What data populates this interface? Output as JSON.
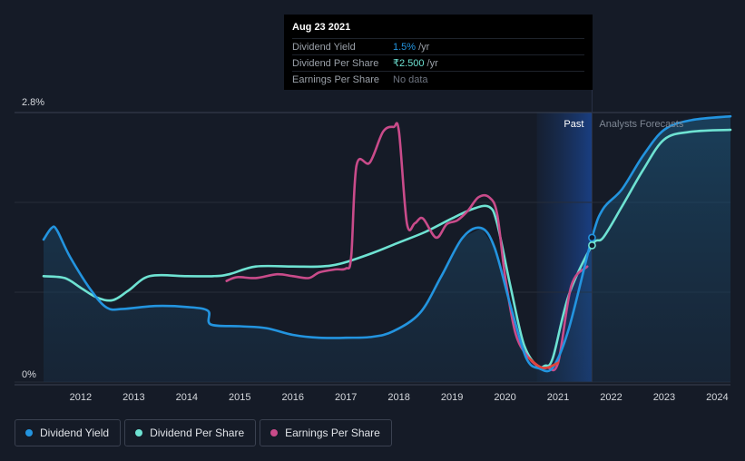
{
  "tooltip": {
    "date": "Aug 23 2021",
    "rows": [
      {
        "label": "Dividend Yield",
        "value": "1.5%",
        "unit": "/yr",
        "color": "#2394df"
      },
      {
        "label": "Dividend Per Share",
        "value": "₹2.500",
        "unit": "/yr",
        "color": "#6ee2d2"
      },
      {
        "label": "Earnings Per Share",
        "value": "No data",
        "unit": "",
        "color": "#6e7480"
      }
    ]
  },
  "legend": [
    {
      "label": "Dividend Yield",
      "color": "#2394df"
    },
    {
      "label": "Dividend Per Share",
      "color": "#6ee2d2"
    },
    {
      "label": "Earnings Per Share",
      "color": "#c94b8a"
    }
  ],
  "chart_data": {
    "type": "line",
    "y_axis": {
      "ticks": [
        "2.8%",
        "0%"
      ],
      "range": [
        0,
        2.8
      ]
    },
    "x_axis": {
      "ticks": [
        "2012",
        "2013",
        "2014",
        "2015",
        "2016",
        "2017",
        "2018",
        "2019",
        "2020",
        "2021",
        "2022",
        "2023",
        "2024"
      ],
      "range": [
        2011.3,
        2024.25
      ]
    },
    "region_labels": {
      "past": "Past",
      "forecast": "Analysts Forecasts"
    },
    "forecast_start": 2021.64,
    "grid": true,
    "series": [
      {
        "name": "Dividend Yield",
        "color": "#2394df",
        "points": [
          [
            2011.3,
            1.48
          ],
          [
            2011.45,
            1.6
          ],
          [
            2011.55,
            1.58
          ],
          [
            2011.8,
            1.3
          ],
          [
            2012.2,
            0.95
          ],
          [
            2012.5,
            0.77
          ],
          [
            2012.8,
            0.76
          ],
          [
            2013.4,
            0.79
          ],
          [
            2014.0,
            0.78
          ],
          [
            2014.4,
            0.74
          ],
          [
            2014.45,
            0.6
          ],
          [
            2015.0,
            0.58
          ],
          [
            2015.5,
            0.56
          ],
          [
            2016.0,
            0.49
          ],
          [
            2016.5,
            0.46
          ],
          [
            2017.0,
            0.46
          ],
          [
            2017.5,
            0.47
          ],
          [
            2017.9,
            0.53
          ],
          [
            2018.4,
            0.72
          ],
          [
            2018.8,
            1.1
          ],
          [
            2019.2,
            1.5
          ],
          [
            2019.55,
            1.6
          ],
          [
            2019.8,
            1.4
          ],
          [
            2020.1,
            0.8
          ],
          [
            2020.4,
            0.25
          ],
          [
            2020.65,
            0.14
          ],
          [
            2020.9,
            0.15
          ],
          [
            2021.2,
            0.55
          ],
          [
            2021.64,
            1.5
          ],
          [
            2021.85,
            1.8
          ],
          [
            2022.2,
            2.0
          ],
          [
            2022.6,
            2.35
          ],
          [
            2023.0,
            2.62
          ],
          [
            2023.5,
            2.72
          ],
          [
            2024.25,
            2.76
          ]
        ]
      },
      {
        "name": "Dividend Per Share",
        "color": "#6ee2d2",
        "points": [
          [
            2011.3,
            1.1
          ],
          [
            2011.7,
            1.08
          ],
          [
            2012.0,
            0.98
          ],
          [
            2012.3,
            0.88
          ],
          [
            2012.6,
            0.85
          ],
          [
            2012.9,
            0.95
          ],
          [
            2013.3,
            1.1
          ],
          [
            2014.0,
            1.1
          ],
          [
            2014.5,
            1.1
          ],
          [
            2014.8,
            1.12
          ],
          [
            2015.3,
            1.2
          ],
          [
            2016.0,
            1.2
          ],
          [
            2016.5,
            1.2
          ],
          [
            2016.9,
            1.23
          ],
          [
            2017.5,
            1.34
          ],
          [
            2018.0,
            1.45
          ],
          [
            2018.5,
            1.56
          ],
          [
            2019.0,
            1.7
          ],
          [
            2019.4,
            1.8
          ],
          [
            2019.7,
            1.82
          ],
          [
            2019.85,
            1.65
          ],
          [
            2020.1,
            1.0
          ],
          [
            2020.35,
            0.4
          ],
          [
            2020.6,
            0.17
          ],
          [
            2020.75,
            0.17
          ],
          [
            2020.9,
            0.25
          ],
          [
            2021.2,
            0.9
          ],
          [
            2021.64,
            1.42
          ],
          [
            2021.85,
            1.5
          ],
          [
            2022.2,
            1.82
          ],
          [
            2022.6,
            2.2
          ],
          [
            2023.0,
            2.52
          ],
          [
            2023.5,
            2.6
          ],
          [
            2024.25,
            2.62
          ]
        ]
      },
      {
        "name": "Earnings Per Share",
        "color": "#c94b8a",
        "points": [
          [
            2014.75,
            1.05
          ],
          [
            2014.95,
            1.09
          ],
          [
            2015.3,
            1.08
          ],
          [
            2015.7,
            1.12
          ],
          [
            2016.0,
            1.1
          ],
          [
            2016.3,
            1.08
          ],
          [
            2016.5,
            1.14
          ],
          [
            2016.8,
            1.17
          ],
          [
            2017.0,
            1.18
          ],
          [
            2017.1,
            1.3
          ],
          [
            2017.2,
            2.25
          ],
          [
            2017.45,
            2.28
          ],
          [
            2017.7,
            2.6
          ],
          [
            2017.9,
            2.65
          ],
          [
            2018.0,
            2.6
          ],
          [
            2018.15,
            1.65
          ],
          [
            2018.3,
            1.65
          ],
          [
            2018.45,
            1.7
          ],
          [
            2018.7,
            1.5
          ],
          [
            2018.9,
            1.64
          ],
          [
            2019.1,
            1.68
          ],
          [
            2019.3,
            1.78
          ],
          [
            2019.5,
            1.92
          ],
          [
            2019.7,
            1.92
          ],
          [
            2019.85,
            1.75
          ],
          [
            2020.0,
            1.1
          ],
          [
            2020.2,
            0.5
          ],
          [
            2020.45,
            0.25
          ],
          [
            2020.65,
            0.16
          ],
          [
            2020.8,
            0.15
          ],
          [
            2021.0,
            0.2
          ],
          [
            2021.25,
            1.0
          ],
          [
            2021.55,
            1.2
          ]
        ]
      }
    ],
    "highlight_points": [
      {
        "series": "Dividend Yield",
        "x": 2021.64,
        "y": 1.5
      },
      {
        "series": "Dividend Per Share",
        "x": 2021.64,
        "y": 1.42
      }
    ]
  }
}
